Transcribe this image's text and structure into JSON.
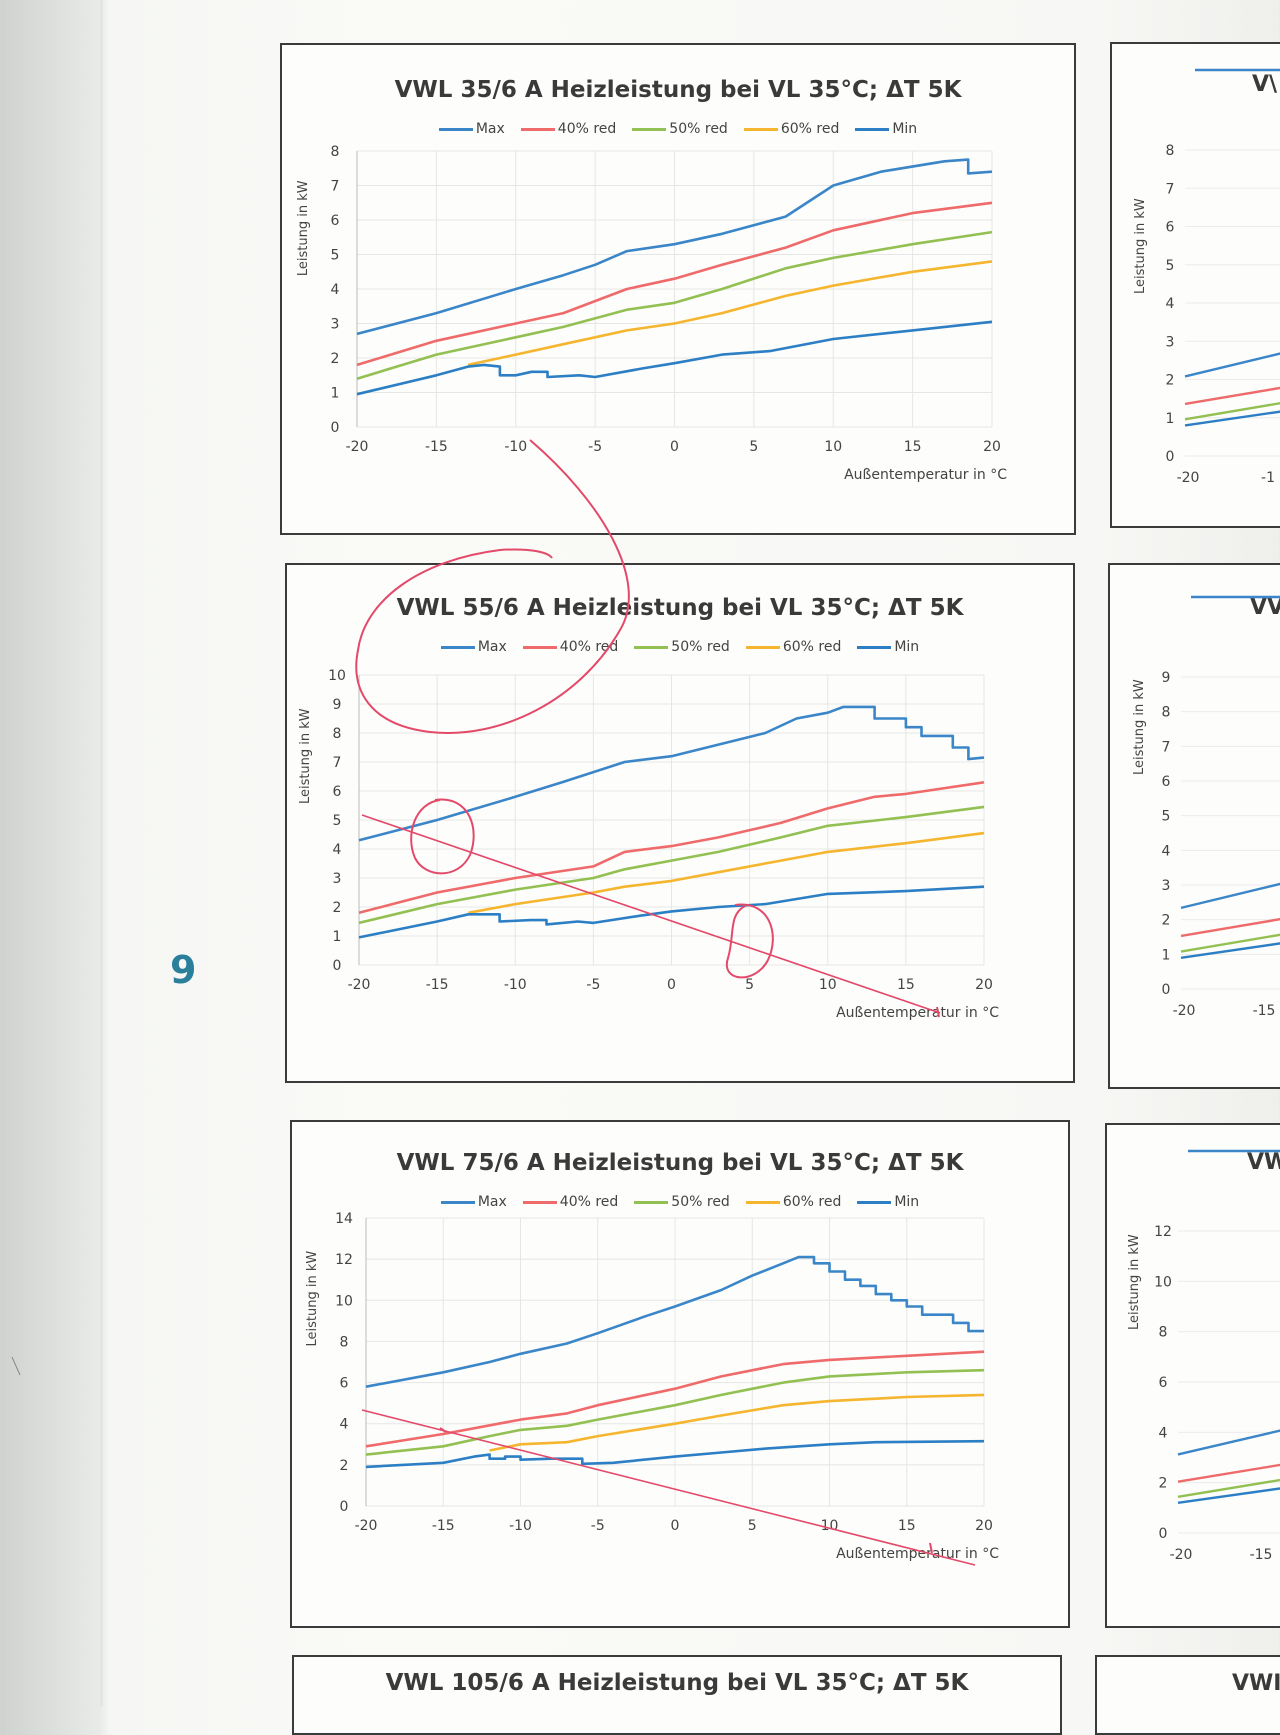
{
  "page_number": "9",
  "legend": [
    "Max",
    "40% red",
    "50% red",
    "60% red",
    "Min"
  ],
  "colors": {
    "Max": "#3a86c8",
    "40% red": "#ef6b6b",
    "50% red": "#93c052",
    "60% red": "#f5b52e",
    "Min": "#2c7fc4",
    "annotation": "#e34a6a"
  },
  "chart_data": [
    {
      "type": "line",
      "title": "VWL 35/6 A Heizleistung bei VL 35°C; ΔT 5K",
      "xlabel": "Außentemperatur in °C",
      "ylabel": "Leistung in kW",
      "xlim": [
        -20,
        20
      ],
      "ylim": [
        0,
        8
      ],
      "xticks": [
        "-20",
        "-15",
        "-10",
        "-5",
        "0",
        "5",
        "10",
        "15",
        "20"
      ],
      "yticks": [
        "0",
        "1",
        "2",
        "3",
        "4",
        "5",
        "6",
        "7",
        "8"
      ],
      "grid": true,
      "legend_position": "top",
      "series": [
        {
          "name": "Max",
          "points": [
            [
              -20,
              2.7
            ],
            [
              -15,
              3.3
            ],
            [
              -10,
              4.0
            ],
            [
              -7,
              4.4
            ],
            [
              -5,
              4.7
            ],
            [
              -3,
              5.1
            ],
            [
              0,
              5.3
            ],
            [
              3,
              5.6
            ],
            [
              7,
              6.1
            ],
            [
              10,
              7.0
            ],
            [
              13,
              7.4
            ],
            [
              17,
              7.7
            ],
            [
              18.5,
              7.75
            ],
            [
              18.5,
              7.35
            ],
            [
              20,
              7.4
            ]
          ]
        },
        {
          "name": "40% red",
          "points": [
            [
              -20,
              1.8
            ],
            [
              -15,
              2.5
            ],
            [
              -10,
              3.0
            ],
            [
              -7,
              3.3
            ],
            [
              -3,
              4.0
            ],
            [
              0,
              4.3
            ],
            [
              3,
              4.7
            ],
            [
              7,
              5.2
            ],
            [
              10,
              5.7
            ],
            [
              15,
              6.2
            ],
            [
              20,
              6.5
            ]
          ]
        },
        {
          "name": "50% red",
          "points": [
            [
              -20,
              1.4
            ],
            [
              -15,
              2.1
            ],
            [
              -10,
              2.6
            ],
            [
              -7,
              2.9
            ],
            [
              -3,
              3.4
            ],
            [
              0,
              3.6
            ],
            [
              3,
              4.0
            ],
            [
              7,
              4.6
            ],
            [
              10,
              4.9
            ],
            [
              15,
              5.3
            ],
            [
              20,
              5.65
            ]
          ]
        },
        {
          "name": "60% red",
          "points": [
            [
              -13,
              1.8
            ],
            [
              -10,
              2.1
            ],
            [
              -7,
              2.4
            ],
            [
              -3,
              2.8
            ],
            [
              0,
              3.0
            ],
            [
              3,
              3.3
            ],
            [
              7,
              3.8
            ],
            [
              10,
              4.1
            ],
            [
              15,
              4.5
            ],
            [
              20,
              4.8
            ]
          ]
        },
        {
          "name": "Min",
          "points": [
            [
              -20,
              0.95
            ],
            [
              -15,
              1.5
            ],
            [
              -13,
              1.75
            ],
            [
              -12,
              1.8
            ],
            [
              -11,
              1.75
            ],
            [
              -11,
              1.5
            ],
            [
              -10,
              1.5
            ],
            [
              -9,
              1.6
            ],
            [
              -8,
              1.6
            ],
            [
              -8,
              1.45
            ],
            [
              -6,
              1.5
            ],
            [
              -5,
              1.45
            ],
            [
              -2,
              1.7
            ],
            [
              0,
              1.85
            ],
            [
              3,
              2.1
            ],
            [
              6,
              2.2
            ],
            [
              10,
              2.55
            ],
            [
              15,
              2.8
            ],
            [
              20,
              3.05
            ]
          ]
        }
      ]
    },
    {
      "type": "line",
      "title": "VWL 55/6 A Heizleistung bei VL 35°C; ΔT 5K",
      "xlabel": "Außentemperatur in °C",
      "ylabel": "Leistung in kW",
      "xlim": [
        -20,
        20
      ],
      "ylim": [
        0,
        10
      ],
      "xticks": [
        "-20",
        "-15",
        "-10",
        "-5",
        "0",
        "5",
        "10",
        "15",
        "20"
      ],
      "yticks": [
        "0",
        "1",
        "2",
        "3",
        "4",
        "5",
        "6",
        "7",
        "8",
        "9",
        "10"
      ],
      "grid": true,
      "legend_position": "top",
      "series": [
        {
          "name": "Max",
          "points": [
            [
              -20,
              4.3
            ],
            [
              -15,
              5.0
            ],
            [
              -10,
              5.8
            ],
            [
              -7,
              6.3
            ],
            [
              -3,
              7.0
            ],
            [
              0,
              7.2
            ],
            [
              3,
              7.6
            ],
            [
              6,
              8.0
            ],
            [
              8,
              8.5
            ],
            [
              10,
              8.7
            ],
            [
              11,
              8.9
            ],
            [
              13,
              8.9
            ],
            [
              13,
              8.5
            ],
            [
              15,
              8.5
            ],
            [
              15,
              8.2
            ],
            [
              16,
              8.2
            ],
            [
              16,
              7.9
            ],
            [
              18,
              7.9
            ],
            [
              18,
              7.5
            ],
            [
              19,
              7.5
            ],
            [
              19,
              7.1
            ],
            [
              20,
              7.15
            ]
          ]
        },
        {
          "name": "40% red",
          "points": [
            [
              -20,
              1.8
            ],
            [
              -15,
              2.5
            ],
            [
              -10,
              3.0
            ],
            [
              -5,
              3.4
            ],
            [
              -3,
              3.9
            ],
            [
              0,
              4.1
            ],
            [
              3,
              4.4
            ],
            [
              7,
              4.9
            ],
            [
              10,
              5.4
            ],
            [
              13,
              5.8
            ],
            [
              15,
              5.9
            ],
            [
              20,
              6.3
            ]
          ]
        },
        {
          "name": "50% red",
          "points": [
            [
              -20,
              1.45
            ],
            [
              -15,
              2.1
            ],
            [
              -10,
              2.6
            ],
            [
              -5,
              3.0
            ],
            [
              -3,
              3.3
            ],
            [
              0,
              3.6
            ],
            [
              3,
              3.9
            ],
            [
              7,
              4.4
            ],
            [
              10,
              4.8
            ],
            [
              15,
              5.1
            ],
            [
              20,
              5.45
            ]
          ]
        },
        {
          "name": "60% red",
          "points": [
            [
              -13,
              1.8
            ],
            [
              -10,
              2.1
            ],
            [
              -5,
              2.5
            ],
            [
              -3,
              2.7
            ],
            [
              0,
              2.9
            ],
            [
              3,
              3.2
            ],
            [
              7,
              3.6
            ],
            [
              10,
              3.9
            ],
            [
              15,
              4.2
            ],
            [
              20,
              4.55
            ]
          ]
        },
        {
          "name": "Min",
          "points": [
            [
              -20,
              0.95
            ],
            [
              -15,
              1.5
            ],
            [
              -13,
              1.75
            ],
            [
              -11,
              1.75
            ],
            [
              -11,
              1.5
            ],
            [
              -9,
              1.55
            ],
            [
              -8,
              1.55
            ],
            [
              -8,
              1.4
            ],
            [
              -6,
              1.5
            ],
            [
              -5,
              1.45
            ],
            [
              -2,
              1.7
            ],
            [
              0,
              1.85
            ],
            [
              3,
              2.0
            ],
            [
              6,
              2.1
            ],
            [
              10,
              2.45
            ],
            [
              15,
              2.55
            ],
            [
              20,
              2.7
            ]
          ]
        }
      ]
    },
    {
      "type": "line",
      "title": "VWL 75/6 A Heizleistung bei VL 35°C; ΔT 5K",
      "xlabel": "Außentemperatur in °C",
      "ylabel": "Leistung in kW",
      "xlim": [
        -20,
        20
      ],
      "ylim": [
        0,
        14
      ],
      "xticks": [
        "-20",
        "-15",
        "-10",
        "-5",
        "0",
        "5",
        "10",
        "15",
        "20"
      ],
      "yticks": [
        "0",
        "2",
        "4",
        "6",
        "8",
        "10",
        "12",
        "14"
      ],
      "grid": true,
      "legend_position": "top",
      "series": [
        {
          "name": "Max",
          "points": [
            [
              -20,
              5.8
            ],
            [
              -15,
              6.5
            ],
            [
              -12,
              7.0
            ],
            [
              -10,
              7.4
            ],
            [
              -7,
              7.9
            ],
            [
              -5,
              8.4
            ],
            [
              -2,
              9.2
            ],
            [
              0,
              9.7
            ],
            [
              3,
              10.5
            ],
            [
              5,
              11.2
            ],
            [
              7,
              11.8
            ],
            [
              8,
              12.1
            ],
            [
              9,
              12.1
            ],
            [
              9,
              11.8
            ],
            [
              10,
              11.8
            ],
            [
              10,
              11.4
            ],
            [
              11,
              11.4
            ],
            [
              11,
              11.0
            ],
            [
              12,
              11.0
            ],
            [
              12,
              10.7
            ],
            [
              13,
              10.7
            ],
            [
              13,
              10.3
            ],
            [
              14,
              10.3
            ],
            [
              14,
              10.0
            ],
            [
              15,
              10.0
            ],
            [
              15,
              9.7
            ],
            [
              16,
              9.7
            ],
            [
              16,
              9.3
            ],
            [
              18,
              9.3
            ],
            [
              18,
              8.9
            ],
            [
              19,
              8.9
            ],
            [
              19,
              8.5
            ],
            [
              20,
              8.5
            ]
          ]
        },
        {
          "name": "40% red",
          "points": [
            [
              -20,
              2.9
            ],
            [
              -15,
              3.5
            ],
            [
              -10,
              4.2
            ],
            [
              -7,
              4.5
            ],
            [
              -5,
              4.9
            ],
            [
              0,
              5.7
            ],
            [
              3,
              6.3
            ],
            [
              7,
              6.9
            ],
            [
              10,
              7.1
            ],
            [
              15,
              7.3
            ],
            [
              20,
              7.5
            ]
          ]
        },
        {
          "name": "50% red",
          "points": [
            [
              -20,
              2.5
            ],
            [
              -15,
              2.9
            ],
            [
              -12,
              3.4
            ],
            [
              -10,
              3.7
            ],
            [
              -7,
              3.9
            ],
            [
              -5,
              4.2
            ],
            [
              0,
              4.9
            ],
            [
              3,
              5.4
            ],
            [
              7,
              6.0
            ],
            [
              10,
              6.3
            ],
            [
              15,
              6.5
            ],
            [
              20,
              6.6
            ]
          ]
        },
        {
          "name": "60% red",
          "points": [
            [
              -12,
              2.7
            ],
            [
              -10,
              3.0
            ],
            [
              -7,
              3.1
            ],
            [
              -5,
              3.4
            ],
            [
              0,
              4.0
            ],
            [
              3,
              4.4
            ],
            [
              7,
              4.9
            ],
            [
              10,
              5.1
            ],
            [
              15,
              5.3
            ],
            [
              20,
              5.4
            ]
          ]
        },
        {
          "name": "Min",
          "points": [
            [
              -20,
              1.9
            ],
            [
              -15,
              2.1
            ],
            [
              -13,
              2.4
            ],
            [
              -12,
              2.5
            ],
            [
              -12,
              2.3
            ],
            [
              -11,
              2.3
            ],
            [
              -11,
              2.4
            ],
            [
              -10,
              2.4
            ],
            [
              -10,
              2.25
            ],
            [
              -8,
              2.3
            ],
            [
              -6,
              2.3
            ],
            [
              -6,
              2.05
            ],
            [
              -4,
              2.1
            ],
            [
              0,
              2.4
            ],
            [
              3,
              2.6
            ],
            [
              6,
              2.8
            ],
            [
              10,
              3.0
            ],
            [
              13,
              3.1
            ],
            [
              20,
              3.15
            ]
          ]
        }
      ]
    }
  ],
  "partial_charts": [
    {
      "title": "VWL 105/6 A Heizleistung bei VL 35°C; ΔT 5K"
    },
    {
      "title": "V\\",
      "ylabel": "Leistung in kW",
      "yticks": [
        "0",
        "1",
        "2",
        "3",
        "4",
        "5",
        "6",
        "7",
        "8"
      ],
      "xticks": [
        "-20",
        "-1"
      ]
    },
    {
      "title": "VV",
      "ylabel": "Leistung in kW",
      "yticks": [
        "0",
        "1",
        "2",
        "3",
        "4",
        "5",
        "6",
        "7",
        "8",
        "9"
      ],
      "xticks": [
        "-20",
        "-15"
      ]
    },
    {
      "title": "VW",
      "ylabel": "Leistung in kW",
      "yticks": [
        "0",
        "2",
        "4",
        "6",
        "8",
        "10",
        "12"
      ],
      "xticks": [
        "-20",
        "-15"
      ]
    },
    {
      "title": "VWI"
    }
  ]
}
